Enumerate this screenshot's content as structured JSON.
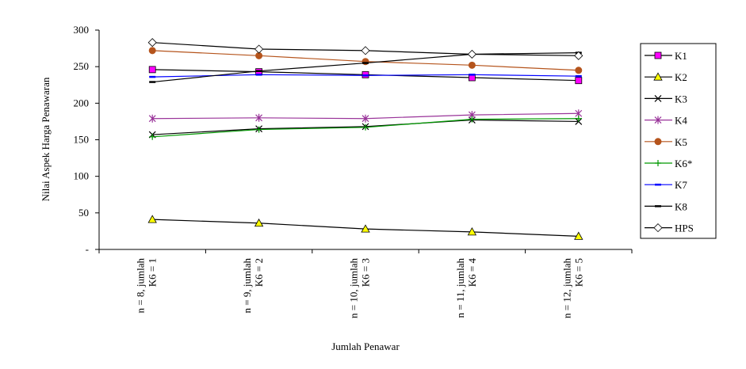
{
  "chart_data": {
    "type": "line",
    "y_label": "Nilai Aspek Harga Penawaran",
    "x_label": "Jumlah Penawar",
    "categories": [
      [
        "n = 8, jumlah",
        "K6 = 1"
      ],
      [
        "n = 9, jumlah",
        "K6 = 2"
      ],
      [
        "n = 10, jumlah",
        "K6 = 3"
      ],
      [
        "n = 11, jumlah",
        "K6 = 4"
      ],
      [
        "n = 12, jumlah",
        "K6 = 5"
      ]
    ],
    "ylim": [
      0,
      300
    ],
    "yticks": [
      {
        "value": 0,
        "label": "-"
      },
      50,
      100,
      150,
      200,
      250,
      300
    ],
    "legend": "right",
    "series": [
      {
        "name": "K1",
        "color": "#000000",
        "marker": "square",
        "marker_color": "#FF00FF",
        "values": [
          246,
          243,
          239,
          235,
          231
        ]
      },
      {
        "name": "K2",
        "color": "#000000",
        "marker": "triangle",
        "marker_color": "#FFFF00",
        "values": [
          41,
          36,
          28,
          24,
          18
        ]
      },
      {
        "name": "K3",
        "color": "#000000",
        "marker": "x",
        "marker_color": "#000000",
        "values": [
          157,
          165,
          168,
          177,
          175
        ]
      },
      {
        "name": "K4",
        "color": "#993399",
        "marker": "asterisk",
        "marker_color": "#993399",
        "values": [
          179,
          180,
          179,
          184,
          186
        ]
      },
      {
        "name": "K5",
        "color": "#B5541C",
        "marker": "circle",
        "marker_color": "#B5541C",
        "values": [
          272,
          265,
          257,
          252,
          245
        ]
      },
      {
        "name": "K6*",
        "color": "#009900",
        "marker": "plus",
        "marker_color": "#009900",
        "values": [
          154,
          164,
          167,
          178,
          179
        ]
      },
      {
        "name": "K7",
        "color": "#0000FF",
        "marker": "dash",
        "marker_color": "#0000FF",
        "values": [
          236,
          239,
          238,
          239,
          237
        ]
      },
      {
        "name": "K8",
        "color": "#000000",
        "marker": "dash",
        "marker_color": "#000000",
        "values": [
          229,
          244,
          255,
          267,
          269
        ]
      },
      {
        "name": "HPS",
        "color": "#000000",
        "marker": "diamond",
        "marker_color": "#FFFFFF",
        "values": [
          283,
          274,
          272,
          267,
          265
        ]
      }
    ]
  }
}
